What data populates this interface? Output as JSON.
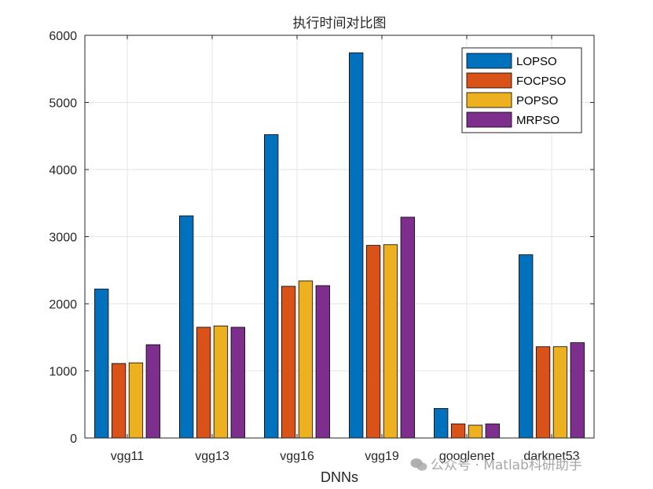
{
  "chart_data": {
    "type": "bar",
    "title": "执行时间对比图",
    "xlabel": "DNNs",
    "ylabel": "",
    "categories": [
      "vgg11",
      "vgg13",
      "vgg16",
      "vgg19",
      "googlenet",
      "darknet53"
    ],
    "ylim": [
      0,
      6000
    ],
    "yticks": [
      0,
      1000,
      2000,
      3000,
      4000,
      5000,
      6000
    ],
    "grid": true,
    "legend_position": "top-right",
    "series": [
      {
        "name": "LOPSO",
        "color": "#0072BD",
        "values": [
          2220,
          3310,
          4520,
          5740,
          440,
          2730
        ]
      },
      {
        "name": "FOCPSO",
        "color": "#D95319",
        "values": [
          1110,
          1650,
          2260,
          2870,
          210,
          1360
        ]
      },
      {
        "name": "POPSO",
        "color": "#EDB120",
        "values": [
          1120,
          1670,
          2340,
          2880,
          190,
          1360
        ]
      },
      {
        "name": "MRPSO",
        "color": "#7E2F8E",
        "values": [
          1390,
          1650,
          2270,
          3290,
          210,
          1420
        ]
      }
    ]
  },
  "watermark": {
    "text": "公众号 · Matlab科研助手",
    "icon": "wechat-icon"
  }
}
